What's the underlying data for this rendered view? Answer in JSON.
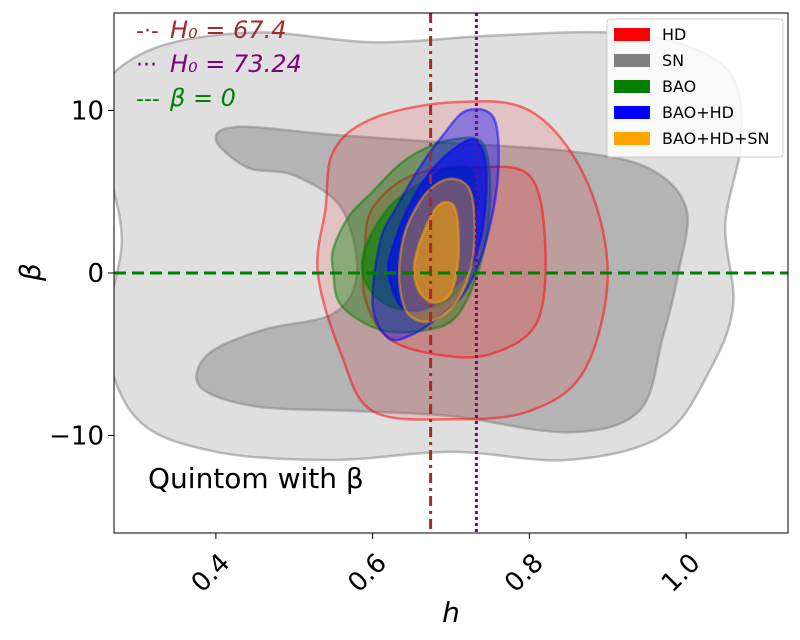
{
  "chart_data": {
    "type": "contour",
    "xlabel": "h",
    "ylabel": "β",
    "xlim": [
      0.27,
      1.13
    ],
    "ylim": [
      -16,
      16
    ],
    "x_ticks": [
      0.4,
      0.6,
      0.8,
      1.0
    ],
    "x_tick_labels": [
      "0.4",
      "0.6",
      "0.8",
      "1.0"
    ],
    "y_ticks": [
      -10,
      0,
      10
    ],
    "y_tick_labels": [
      "−10",
      "0",
      "10"
    ],
    "annotation": "Quintom with β",
    "reference_lines": [
      {
        "label_prefix": "-·-",
        "label": "H₀ = 67.4",
        "orientation": "vertical",
        "value": 0.674,
        "style": "dashdot",
        "color": "#a52a2a"
      },
      {
        "label_prefix": "···",
        "label": "H₀ = 73.24",
        "orientation": "vertical",
        "value": 0.7324,
        "style": "dotted",
        "color": "#800080"
      },
      {
        "label_prefix": "---",
        "label": "β = 0",
        "orientation": "horizontal",
        "value": 0,
        "style": "dashed",
        "color": "#008000"
      }
    ],
    "legend": {
      "placement": "top-right",
      "entries": [
        {
          "name": "HD",
          "color": "#ff0000"
        },
        {
          "name": "SN",
          "color": "#808080"
        },
        {
          "name": "BAO",
          "color": "#008000"
        },
        {
          "name": "BAO+HD",
          "color": "#0000ff"
        },
        {
          "name": "BAO+HD+SN",
          "color": "#ffa500"
        }
      ]
    },
    "series": [
      {
        "name": "SN",
        "color": "#808080",
        "contours": [
          {
            "level": "outer",
            "points": [
              [
                0.32,
                13.8
              ],
              [
                0.45,
                14.8
              ],
              [
                0.6,
                14.2
              ],
              [
                0.75,
                14.6
              ],
              [
                0.9,
                14.8
              ],
              [
                1.0,
                14.0
              ],
              [
                1.06,
                12.0
              ],
              [
                1.07,
                8.0
              ],
              [
                1.05,
                3.0
              ],
              [
                1.06,
                -2.0
              ],
              [
                1.03,
                -6.0
              ],
              [
                0.97,
                -10.0
              ],
              [
                0.85,
                -11.5
              ],
              [
                0.7,
                -11.0
              ],
              [
                0.55,
                -11.5
              ],
              [
                0.4,
                -11.0
              ],
              [
                0.3,
                -9.0
              ],
              [
                0.26,
                -4.0
              ],
              [
                0.28,
                2.0
              ],
              [
                0.26,
                7.0
              ],
              [
                0.25,
                11.0
              ]
            ]
          },
          {
            "level": "inner",
            "points": [
              [
                0.4,
                8.2
              ],
              [
                0.43,
                9.0
              ],
              [
                0.55,
                8.5
              ],
              [
                0.7,
                8.0
              ],
              [
                0.85,
                7.5
              ],
              [
                0.95,
                6.5
              ],
              [
                1.0,
                4.0
              ],
              [
                0.99,
                0.0
              ],
              [
                0.97,
                -4.0
              ],
              [
                0.94,
                -8.5
              ],
              [
                0.85,
                -9.8
              ],
              [
                0.7,
                -8.8
              ],
              [
                0.58,
                -8.5
              ],
              [
                0.45,
                -8.2
              ],
              [
                0.38,
                -7.0
              ],
              [
                0.39,
                -5.0
              ],
              [
                0.46,
                -3.5
              ],
              [
                0.55,
                -2.5
              ],
              [
                0.58,
                0.0
              ],
              [
                0.56,
                4.0
              ],
              [
                0.5,
                6.0
              ],
              [
                0.44,
                6.5
              ]
            ]
          }
        ]
      },
      {
        "name": "HD",
        "color": "#ff0000",
        "contours": [
          {
            "level": "outer",
            "points": [
              [
                0.55,
                7.5
              ],
              [
                0.6,
                9.5
              ],
              [
                0.7,
                10.5
              ],
              [
                0.8,
                10.0
              ],
              [
                0.87,
                6.0
              ],
              [
                0.9,
                0.0
              ],
              [
                0.87,
                -6.0
              ],
              [
                0.8,
                -8.5
              ],
              [
                0.7,
                -9.0
              ],
              [
                0.6,
                -8.5
              ],
              [
                0.56,
                -5.0
              ],
              [
                0.53,
                0.0
              ],
              [
                0.54,
                4.0
              ]
            ]
          },
          {
            "level": "inner",
            "points": [
              [
                0.6,
                4.0
              ],
              [
                0.65,
                6.0
              ],
              [
                0.73,
                6.5
              ],
              [
                0.8,
                6.0
              ],
              [
                0.82,
                2.0
              ],
              [
                0.81,
                -3.0
              ],
              [
                0.75,
                -5.0
              ],
              [
                0.68,
                -5.0
              ],
              [
                0.62,
                -4.0
              ],
              [
                0.59,
                -1.5
              ],
              [
                0.59,
                1.5
              ]
            ]
          }
        ]
      },
      {
        "name": "BAO",
        "color": "#008000",
        "contours": [
          {
            "level": "outer",
            "points": [
              [
                0.55,
                1.5
              ],
              [
                0.57,
                3.5
              ],
              [
                0.6,
                5.0
              ],
              [
                0.63,
                6.5
              ],
              [
                0.66,
                7.5
              ],
              [
                0.7,
                8.2
              ],
              [
                0.74,
                8.0
              ],
              [
                0.75,
                5.0
              ],
              [
                0.74,
                1.0
              ],
              [
                0.71,
                -2.5
              ],
              [
                0.67,
                -3.5
              ],
              [
                0.61,
                -3.5
              ],
              [
                0.56,
                -2.0
              ],
              [
                0.55,
                0.0
              ]
            ]
          },
          {
            "level": "inner",
            "points": [
              [
                0.59,
                1.5
              ],
              [
                0.62,
                4.0
              ],
              [
                0.66,
                5.5
              ],
              [
                0.7,
                6.5
              ],
              [
                0.73,
                6.0
              ],
              [
                0.73,
                2.0
              ],
              [
                0.71,
                -1.0
              ],
              [
                0.67,
                -2.2
              ],
              [
                0.62,
                -2.0
              ],
              [
                0.59,
                -0.5
              ]
            ]
          }
        ]
      },
      {
        "name": "BAO+HD",
        "color": "#0000ff",
        "contours": [
          {
            "level": "outer",
            "points": [
              [
                0.61,
                2.0
              ],
              [
                0.63,
                4.0
              ],
              [
                0.66,
                6.5
              ],
              [
                0.69,
                8.5
              ],
              [
                0.72,
                10.0
              ],
              [
                0.755,
                9.5
              ],
              [
                0.76,
                6.0
              ],
              [
                0.745,
                2.0
              ],
              [
                0.72,
                -1.0
              ],
              [
                0.69,
                -2.5
              ],
              [
                0.65,
                -3.8
              ],
              [
                0.62,
                -4.0
              ],
              [
                0.6,
                -2.0
              ]
            ]
          },
          {
            "level": "inner",
            "points": [
              [
                0.625,
                1.5
              ],
              [
                0.645,
                4.0
              ],
              [
                0.67,
                6.0
              ],
              [
                0.7,
                7.5
              ],
              [
                0.73,
                8.2
              ],
              [
                0.745,
                6.5
              ],
              [
                0.74,
                2.5
              ],
              [
                0.72,
                0.0
              ],
              [
                0.69,
                -1.5
              ],
              [
                0.66,
                -2.3
              ],
              [
                0.635,
                -2.0
              ],
              [
                0.62,
                0.0
              ]
            ]
          }
        ]
      },
      {
        "name": "BAO+HD+SN",
        "color": "#ffa500",
        "contours": [
          {
            "level": "outer",
            "points": [
              [
                0.635,
                1.0
              ],
              [
                0.645,
                3.0
              ],
              [
                0.67,
                5.0
              ],
              [
                0.7,
                5.8
              ],
              [
                0.725,
                5.0
              ],
              [
                0.73,
                2.0
              ],
              [
                0.72,
                -0.5
              ],
              [
                0.7,
                -2.2
              ],
              [
                0.67,
                -3.0
              ],
              [
                0.645,
                -2.5
              ],
              [
                0.635,
                -1.0
              ]
            ]
          },
          {
            "level": "inner",
            "points": [
              [
                0.653,
                0.5
              ],
              [
                0.665,
                2.5
              ],
              [
                0.685,
                4.2
              ],
              [
                0.705,
                4.0
              ],
              [
                0.71,
                1.5
              ],
              [
                0.705,
                -0.5
              ],
              [
                0.695,
                -1.5
              ],
              [
                0.675,
                -1.8
              ],
              [
                0.658,
                -1.0
              ]
            ]
          }
        ]
      }
    ]
  }
}
